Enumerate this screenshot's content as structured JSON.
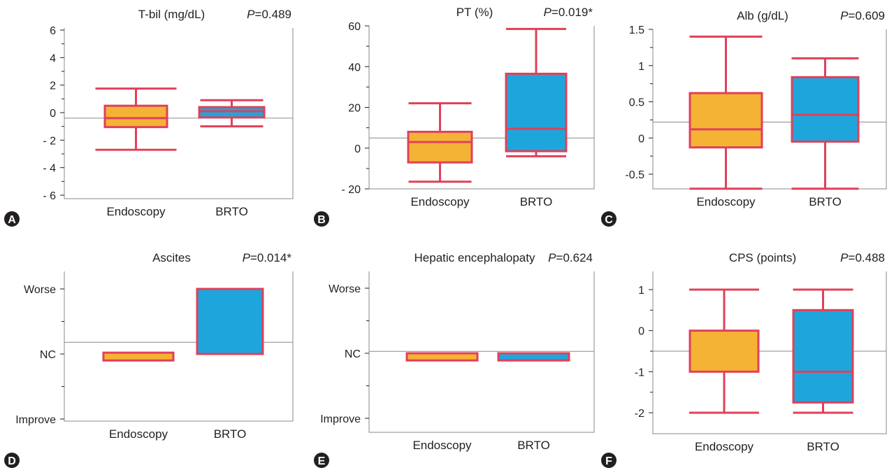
{
  "chart_data": [
    {
      "panel": "A",
      "type": "box",
      "title": "T-bil (mg/dL)",
      "p_prefix": "P",
      "p_value": "=0.489",
      "categories": [
        "Endoscopy",
        "BRTO"
      ],
      "yticks": [
        6,
        4,
        2,
        0,
        -2,
        -4,
        -6
      ],
      "ytick_labels": [
        "6",
        "4",
        "2",
        "0",
        "- 2",
        "- 4",
        "- 6"
      ],
      "ylim": [
        -6,
        6
      ],
      "reference_line": -0.4,
      "series": [
        {
          "name": "Endoscopy",
          "color": "#f5b335",
          "min": -2.7,
          "q1": -1.05,
          "median": -0.4,
          "q3": 0.5,
          "max": 1.75
        },
        {
          "name": "BRTO",
          "color": "#1ea6dc",
          "min": -1.0,
          "q1": -0.35,
          "median": 0.1,
          "q3": 0.4,
          "max": 0.9
        }
      ]
    },
    {
      "panel": "B",
      "type": "box",
      "title": "PT (%)",
      "p_prefix": "P",
      "p_value": "=0.019*",
      "categories": [
        "Endoscopy",
        "BRTO"
      ],
      "yticks": [
        60,
        40,
        20,
        0,
        -20
      ],
      "ytick_labels": [
        "60",
        "40",
        "20",
        "0",
        "- 20"
      ],
      "ylim": [
        -20,
        60
      ],
      "reference_line": 5,
      "series": [
        {
          "name": "Endoscopy",
          "color": "#f5b335",
          "min": -16.5,
          "q1": -7,
          "median": 3,
          "q3": 8,
          "max": 22
        },
        {
          "name": "BRTO",
          "color": "#1ea6dc",
          "min": -4,
          "q1": -1.5,
          "median": 9.5,
          "q3": 36.5,
          "max": 58.5
        }
      ]
    },
    {
      "panel": "C",
      "type": "box",
      "title": "Alb (g/dL)",
      "p_prefix": "P",
      "p_value": "=0.609",
      "categories": [
        "Endoscopy",
        "BRTO"
      ],
      "yticks": [
        1.5,
        1,
        0.5,
        0,
        -0.5
      ],
      "ytick_labels": [
        "1.5",
        "1",
        "0.5",
        "0",
        "-0.5"
      ],
      "ylim": [
        -0.75,
        1.5
      ],
      "reference_line": 0.22,
      "series": [
        {
          "name": "Endoscopy",
          "color": "#f5b335",
          "min": -0.7,
          "q1": -0.13,
          "median": 0.12,
          "q3": 0.62,
          "max": 1.4
        },
        {
          "name": "BRTO",
          "color": "#1ea6dc",
          "min": -0.7,
          "q1": -0.05,
          "median": 0.32,
          "q3": 0.84,
          "max": 1.1
        }
      ]
    },
    {
      "panel": "D",
      "type": "box",
      "title": "Ascites",
      "p_prefix": "P",
      "p_value": "=0.014*",
      "categories": [
        "Endoscopy",
        "BRTO"
      ],
      "yticks": [
        1,
        0,
        -1
      ],
      "ytick_labels": [
        "Worse",
        "NC",
        "Improve"
      ],
      "ylim": [
        -1.1,
        1.1
      ],
      "reference_line": 0.18,
      "series": [
        {
          "name": "Endoscopy",
          "color": "#f5b335",
          "min": -0.1,
          "q1": -0.1,
          "median": -0.1,
          "q3": 0.02,
          "max": 0.02
        },
        {
          "name": "BRTO",
          "color": "#1ea6dc",
          "min": 0,
          "q1": 0,
          "median": 0,
          "q3": 1,
          "max": 1
        }
      ]
    },
    {
      "panel": "E",
      "type": "box",
      "title": "Hepatic encephalopaty",
      "p_prefix": "P",
      "p_value": "=0.624",
      "categories": [
        "Endoscopy",
        "BRTO"
      ],
      "yticks": [
        1,
        0,
        -1
      ],
      "ytick_labels": [
        "Worse",
        "NC",
        "Improve"
      ],
      "ylim": [
        -1.1,
        1.1
      ],
      "reference_line": 0.03,
      "series": [
        {
          "name": "Endoscopy",
          "color": "#f5b335",
          "min": -0.11,
          "q1": -0.11,
          "median": -0.11,
          "q3": 0,
          "max": 0
        },
        {
          "name": "BRTO",
          "color": "#1ea6dc",
          "min": -0.11,
          "q1": -0.11,
          "median": -0.11,
          "q3": 0,
          "max": 0
        }
      ]
    },
    {
      "panel": "F",
      "type": "box",
      "title": "CPS (points)",
      "p_prefix": "P",
      "p_value": "=0.488",
      "categories": [
        "Endoscopy",
        "BRTO"
      ],
      "yticks": [
        1,
        0,
        -1,
        -2
      ],
      "ytick_labels": [
        "1",
        "0",
        "-1",
        "-2"
      ],
      "ylim": [
        -2.5,
        1.5
      ],
      "reference_line": -0.5,
      "series": [
        {
          "name": "Endoscopy",
          "color": "#f5b335",
          "min": -2,
          "q1": -1,
          "median": -1,
          "q3": 0,
          "max": 1
        },
        {
          "name": "BRTO",
          "color": "#1ea6dc",
          "min": -2,
          "q1": -1.75,
          "median": -1,
          "q3": 0.5,
          "max": 1
        }
      ]
    }
  ],
  "style": {
    "box_edge_color": "#e0405a",
    "reference_line_color": "#8a8a8a",
    "frame_color": "#8a8a8a",
    "badge_color": "#231f20"
  }
}
